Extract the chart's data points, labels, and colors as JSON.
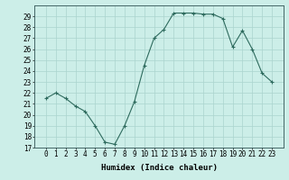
{
  "x": [
    0,
    1,
    2,
    3,
    4,
    5,
    6,
    7,
    8,
    9,
    10,
    11,
    12,
    13,
    14,
    15,
    16,
    17,
    18,
    19,
    20,
    21,
    22,
    23
  ],
  "y": [
    21.5,
    22.0,
    21.5,
    20.8,
    20.3,
    19.0,
    17.5,
    17.3,
    19.0,
    21.2,
    24.5,
    27.0,
    27.8,
    29.3,
    29.3,
    29.3,
    29.2,
    29.2,
    28.8,
    26.2,
    27.7,
    26.0,
    23.8,
    23.0
  ],
  "line_color": "#2e6b5e",
  "marker": "+",
  "marker_size": 3,
  "bg_color": "#cceee8",
  "grid_color": "#aad4ce",
  "xlabel": "Humidex (Indice chaleur)",
  "ylim": [
    17,
    30
  ],
  "yticks": [
    17,
    18,
    19,
    20,
    21,
    22,
    23,
    24,
    25,
    26,
    27,
    28,
    29
  ],
  "xticks": [
    0,
    1,
    2,
    3,
    4,
    5,
    6,
    7,
    8,
    9,
    10,
    11,
    12,
    13,
    14,
    15,
    16,
    17,
    18,
    19,
    20,
    21,
    22,
    23
  ],
  "tick_fontsize": 5.5,
  "xlabel_fontsize": 6.5,
  "line_width": 0.8,
  "marker_edge_width": 0.8
}
